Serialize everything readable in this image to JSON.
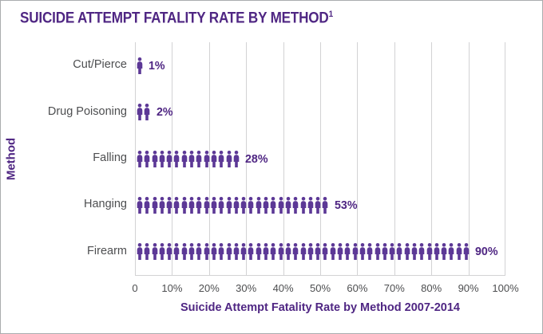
{
  "title": {
    "text": "SUICIDE ATTEMPT FATALITY RATE BY METHOD",
    "superscript": "1"
  },
  "colors": {
    "title_purple": "#4f2683",
    "icon_purple": "#5c3896",
    "value_label_purple": "#4f2683",
    "label_gray": "#4d4e50",
    "gridline_gray": "#d2d2d4",
    "frame_border_gray": "#aaacae",
    "background": "#ffffff"
  },
  "chart_data": {
    "type": "bar",
    "subtype": "pictogram",
    "orientation": "horizontal",
    "title": "SUICIDE ATTEMPT FATALITY RATE BY METHOD",
    "categories": [
      "Cut/Pierce",
      "Drug Poisoning",
      "Falling",
      "Hanging",
      "Firearm"
    ],
    "values": [
      1,
      2,
      28,
      53,
      90
    ],
    "value_labels": [
      "1%",
      "2%",
      "28%",
      "53%",
      "90%"
    ],
    "icon_counts": [
      1,
      2,
      14,
      26,
      45
    ],
    "icon": "person-icon",
    "xlabel": "Suicide Attempt Fatality Rate by Method 2007-2014",
    "ylabel": "Method",
    "xlim": [
      0,
      100
    ],
    "x_ticks": [
      "0",
      "10%",
      "20%",
      "30%",
      "40%",
      "50%",
      "60%",
      "70%",
      "80%",
      "90%",
      "100%"
    ],
    "grid": "vertical",
    "legend": "none"
  }
}
